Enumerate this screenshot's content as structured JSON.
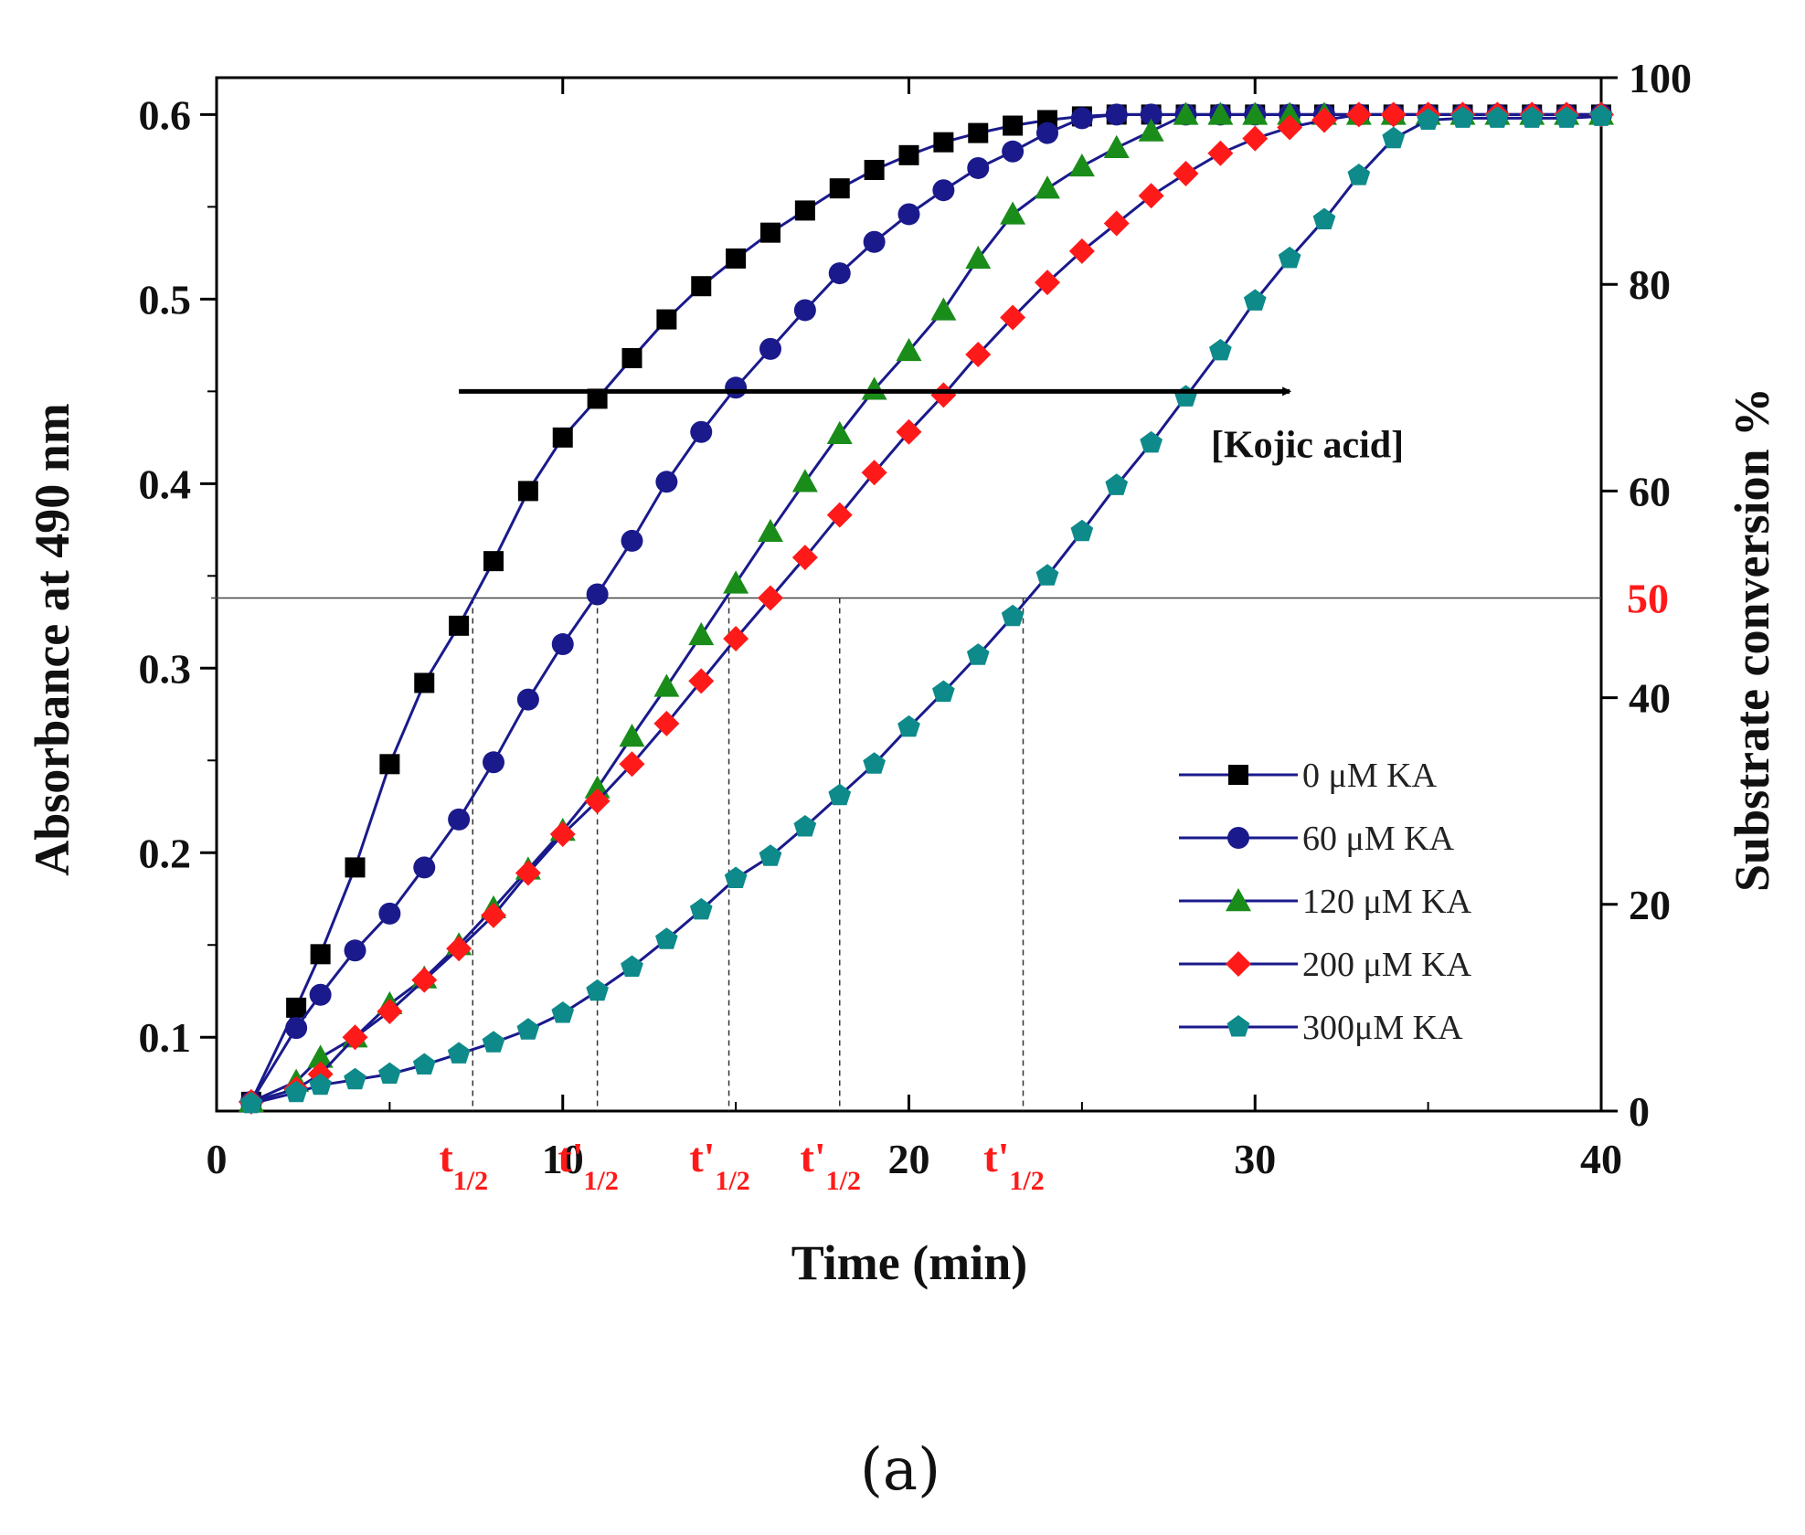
{
  "chart_data": {
    "type": "line",
    "xlabel": "Time (min)",
    "ylabel": "Absorbance at 490 nm",
    "y2label": "Substrate conversion %",
    "xlim": [
      0,
      40
    ],
    "ylim": [
      0.06,
      0.62
    ],
    "y2lim": [
      0,
      100
    ],
    "x_ticks": [
      "0",
      "10",
      "20",
      "30",
      "40"
    ],
    "y_ticks": [
      "0.1",
      "0.2",
      "0.3",
      "0.4",
      "0.5",
      "0.6"
    ],
    "y2_ticks": [
      "0",
      "20",
      "40",
      "60",
      "80",
      "100"
    ],
    "highlight_level": {
      "value": 0.338,
      "label": "50",
      "color": "#ff1a1a"
    },
    "annotation": {
      "text": "[Kojic acid]",
      "from_x": 7,
      "to_x": 31,
      "y": 0.45
    },
    "half_times": [
      {
        "label": "t",
        "sub": "1/2",
        "x": 7.4
      },
      {
        "label": "t'",
        "sub": "1/2",
        "x": 11
      },
      {
        "label": "t'",
        "sub": "1/2",
        "x": 14.8
      },
      {
        "label": "t'",
        "sub": "1/2",
        "x": 18
      },
      {
        "label": "t'",
        "sub": "1/2",
        "x": 23.3
      }
    ],
    "series": [
      {
        "name": "0    μM KA",
        "marker": "square",
        "color": "#000000",
        "x": [
          1,
          2.3,
          3,
          4,
          5,
          6,
          7,
          8,
          9,
          10,
          11,
          12,
          13,
          14,
          15,
          16,
          17,
          18,
          19,
          20,
          21,
          22,
          23,
          24,
          25,
          26,
          27,
          28,
          29,
          30,
          31,
          32,
          33,
          34,
          35,
          36,
          37,
          38,
          39,
          40
        ],
        "values": [
          0.065,
          0.116,
          0.145,
          0.192,
          0.248,
          0.292,
          0.323,
          0.358,
          0.396,
          0.425,
          0.446,
          0.468,
          0.489,
          0.507,
          0.522,
          0.536,
          0.548,
          0.56,
          0.57,
          0.578,
          0.585,
          0.59,
          0.594,
          0.597,
          0.599,
          0.6,
          0.6,
          0.6,
          0.6,
          0.6,
          0.6,
          0.6,
          0.6,
          0.6,
          0.6,
          0.6,
          0.6,
          0.6,
          0.6,
          0.6
        ]
      },
      {
        "name": " 60 μM KA",
        "marker": "circle",
        "color": "#1a1a8c",
        "x": [
          1,
          2.3,
          3,
          4,
          5,
          6,
          7,
          8,
          9,
          10,
          11,
          12,
          13,
          14,
          15,
          16,
          17,
          18,
          19,
          20,
          21,
          22,
          23,
          24,
          25,
          26,
          27,
          28,
          29,
          30,
          31,
          32,
          33,
          34,
          35,
          36,
          37,
          38,
          39,
          40
        ],
        "values": [
          0.065,
          0.105,
          0.123,
          0.147,
          0.167,
          0.192,
          0.218,
          0.249,
          0.283,
          0.313,
          0.34,
          0.369,
          0.401,
          0.428,
          0.452,
          0.473,
          0.494,
          0.514,
          0.531,
          0.546,
          0.559,
          0.571,
          0.58,
          0.59,
          0.598,
          0.6,
          0.6,
          0.6,
          0.6,
          0.6,
          0.6,
          0.6,
          0.6,
          0.6,
          0.6,
          0.6,
          0.6,
          0.6,
          0.6,
          0.6
        ]
      },
      {
        "name": "120 μM KA",
        "marker": "triangle",
        "color": "#1a8c1a",
        "x": [
          1,
          2.3,
          3,
          4,
          5,
          6,
          7,
          8,
          9,
          10,
          11,
          12,
          13,
          14,
          15,
          16,
          17,
          18,
          19,
          20,
          21,
          22,
          23,
          24,
          25,
          26,
          27,
          28,
          29,
          30,
          31,
          32,
          33,
          34,
          35,
          36,
          37,
          38,
          39,
          40
        ],
        "values": [
          0.065,
          0.076,
          0.089,
          0.1,
          0.118,
          0.132,
          0.15,
          0.17,
          0.191,
          0.212,
          0.235,
          0.263,
          0.29,
          0.318,
          0.346,
          0.374,
          0.401,
          0.427,
          0.451,
          0.472,
          0.494,
          0.522,
          0.546,
          0.56,
          0.572,
          0.582,
          0.591,
          0.6,
          0.6,
          0.6,
          0.6,
          0.6,
          0.6,
          0.6,
          0.6,
          0.6,
          0.6,
          0.6,
          0.6,
          0.6
        ]
      },
      {
        "name": "200 μM KA",
        "marker": "diamond",
        "color": "#ff1a1a",
        "x": [
          1,
          2.3,
          3,
          4,
          5,
          6,
          7,
          8,
          9,
          10,
          11,
          12,
          13,
          14,
          15,
          16,
          17,
          18,
          19,
          20,
          21,
          22,
          23,
          24,
          25,
          26,
          27,
          28,
          29,
          30,
          31,
          32,
          33,
          34,
          35,
          36,
          37,
          38,
          39,
          40
        ],
        "values": [
          0.065,
          0.072,
          0.08,
          0.1,
          0.114,
          0.131,
          0.148,
          0.166,
          0.189,
          0.21,
          0.228,
          0.248,
          0.27,
          0.293,
          0.316,
          0.338,
          0.36,
          0.383,
          0.406,
          0.428,
          0.448,
          0.47,
          0.49,
          0.509,
          0.526,
          0.541,
          0.556,
          0.568,
          0.579,
          0.587,
          0.593,
          0.597,
          0.6,
          0.6,
          0.6,
          0.6,
          0.6,
          0.6,
          0.6,
          0.6
        ]
      },
      {
        "name": "300μM  KA",
        "marker": "pentagon",
        "color": "#0e8a8a",
        "x": [
          1,
          2.3,
          3,
          4,
          5,
          6,
          7,
          8,
          9,
          10,
          11,
          12,
          13,
          14,
          15,
          16,
          17,
          18,
          19,
          20,
          21,
          22,
          23,
          24,
          25,
          26,
          27,
          28,
          29,
          30,
          31,
          32,
          33,
          34,
          35,
          36,
          37,
          38,
          39,
          40
        ],
        "values": [
          0.064,
          0.07,
          0.074,
          0.077,
          0.08,
          0.085,
          0.091,
          0.097,
          0.104,
          0.113,
          0.125,
          0.138,
          0.153,
          0.169,
          0.186,
          0.198,
          0.214,
          0.231,
          0.248,
          0.268,
          0.287,
          0.307,
          0.328,
          0.35,
          0.374,
          0.399,
          0.422,
          0.447,
          0.472,
          0.499,
          0.522,
          0.543,
          0.567,
          0.587,
          0.597,
          0.598,
          0.598,
          0.598,
          0.598,
          0.599
        ]
      }
    ]
  },
  "caption": "(a)"
}
